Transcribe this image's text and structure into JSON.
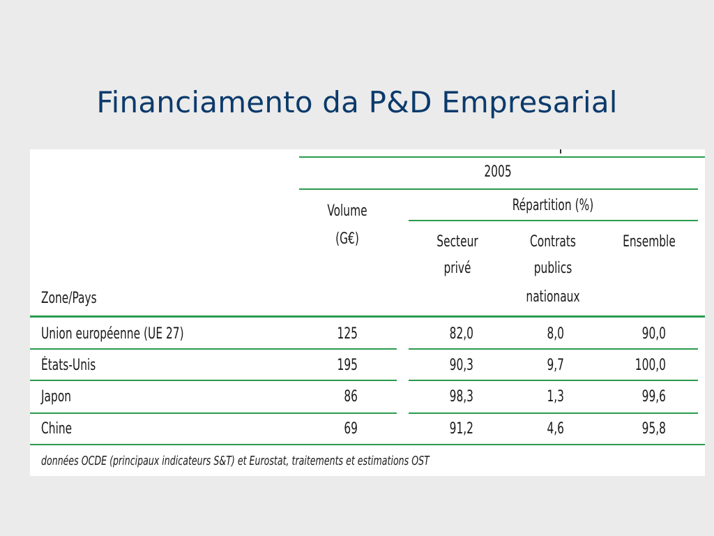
{
  "title": "Financiamento da P&D Empresarial",
  "table": {
    "year": "2005",
    "col_zone": "Zone/Pays",
    "col_volume_line1": "Volume",
    "col_volume_line2": "(G€)",
    "col_repartition": "Répartition (%)",
    "col_secteur_line1": "Secteur",
    "col_secteur_line2": "privé",
    "col_contrats_line1": "Contrats",
    "col_contrats_line2": "publics",
    "col_contrats_line3": "nationaux",
    "col_ensemble": "Ensemble",
    "rows": [
      {
        "zone": "Union européenne (UE 27)",
        "volume": "125",
        "secteur": "82,0",
        "contrats": "8,0",
        "ensemble": "90,0"
      },
      {
        "zone": "États-Unis",
        "volume": "195",
        "secteur": "90,3",
        "contrats": "9,7",
        "ensemble": "100,0"
      },
      {
        "zone": "Japon",
        "volume": "86",
        "secteur": "98,3",
        "contrats": "1,3",
        "ensemble": "99,6"
      },
      {
        "zone": "Chine",
        "volume": "69",
        "secteur": "91,2",
        "contrats": "4,6",
        "ensemble": "95,8"
      }
    ],
    "source": "données OCDE (principaux indicateurs S&T) et Eurostat, traitements et estimations OST"
  }
}
